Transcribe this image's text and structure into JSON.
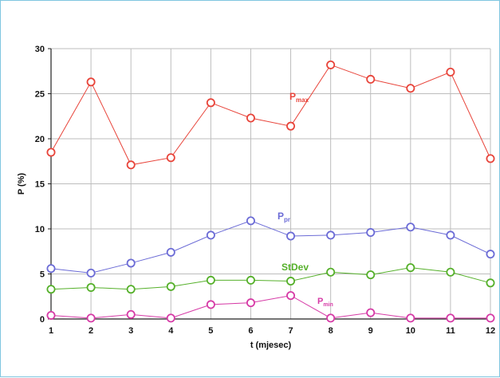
{
  "chart_data": {
    "type": "line",
    "title": "",
    "xlabel": "t (mjesec)",
    "ylabel": "P (%)",
    "x": [
      1,
      2,
      3,
      4,
      5,
      6,
      7,
      8,
      9,
      10,
      11,
      12
    ],
    "xlim": [
      1,
      12
    ],
    "ylim": [
      0,
      30
    ],
    "yticks": [
      0,
      5,
      10,
      15,
      20,
      25,
      30
    ],
    "grid": true,
    "legend": "inline labels",
    "series": [
      {
        "name": "P",
        "subscript": "max",
        "color": "#e8443a",
        "values": [
          18.5,
          26.3,
          17.1,
          17.9,
          24.0,
          22.3,
          21.4,
          28.2,
          26.6,
          25.6,
          27.4,
          17.8
        ]
      },
      {
        "name": "P",
        "subscript": "pr",
        "color": "#6b6bd6",
        "values": [
          5.6,
          5.1,
          6.2,
          7.4,
          9.3,
          10.9,
          9.2,
          9.3,
          9.6,
          10.2,
          9.3,
          7.2
        ]
      },
      {
        "name": "StDev",
        "subscript": "",
        "color": "#55b02a",
        "values": [
          3.3,
          3.5,
          3.3,
          3.6,
          4.3,
          4.3,
          4.2,
          5.2,
          4.9,
          5.7,
          5.2,
          4.0
        ]
      },
      {
        "name": "P",
        "subscript": "min",
        "color": "#d63aa6",
        "values": [
          0.4,
          0.1,
          0.5,
          0.1,
          1.6,
          1.8,
          2.6,
          0.1,
          0.7,
          0.1,
          0.1,
          0.1
        ]
      }
    ]
  }
}
